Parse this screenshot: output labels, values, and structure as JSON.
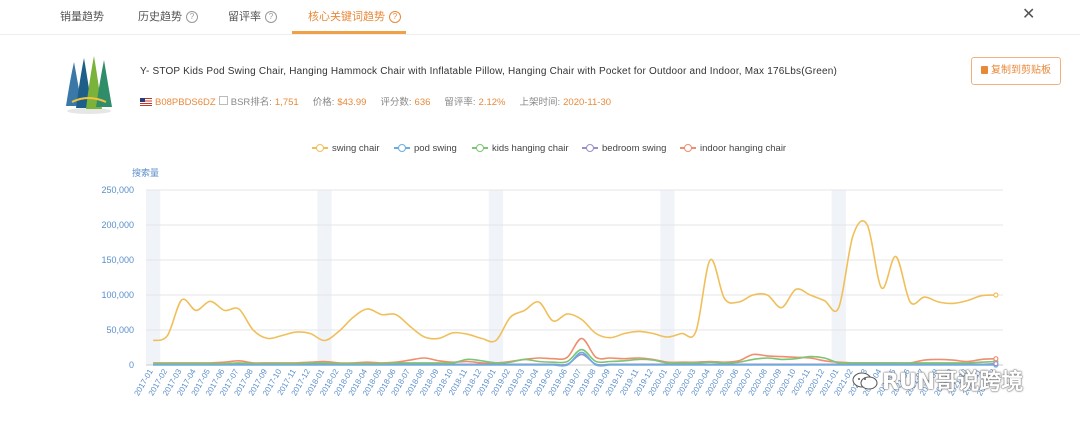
{
  "tabs": [
    {
      "label": "销量趋势",
      "help": false,
      "active": false
    },
    {
      "label": "历史趋势",
      "help": true,
      "active": false
    },
    {
      "label": "留评率",
      "help": true,
      "active": false
    },
    {
      "label": "核心关键词趋势",
      "help": true,
      "active": true
    }
  ],
  "help_glyph": "?",
  "close_glyph": "✕",
  "product": {
    "title": "Y- STOP Kids Pod Swing Chair, Hanging Hammock Chair with Inflatable Pillow, Hanging Chair with Pocket for Outdoor and Indoor, Max 176Lbs(Green)",
    "asin": "B08PBDS6DZ",
    "bsr_label": "BSR排名:",
    "bsr": "1,751",
    "price_label": "价格:",
    "price": "$43.99",
    "reviews_label": "评分数:",
    "reviews": "636",
    "review_rate_label": "留评率:",
    "review_rate": "2.12%",
    "listed_label": "上架时间:",
    "listed": "2020-11-30"
  },
  "copy_button": "复制到剪贴板",
  "watermark": "RUN哥说跨境",
  "colors": {
    "accent": "#e8893a",
    "axis_text": "#5b8ec9"
  },
  "chart_data": {
    "type": "line",
    "ylabel": "搜索量",
    "ylim": [
      0,
      250000
    ],
    "yticks": [
      "0",
      "50,000",
      "100,000",
      "150,000",
      "200,000",
      "250,000"
    ],
    "grid": true,
    "legend_position": "top-center",
    "x": [
      "2017-01",
      "2017-02",
      "2017-03",
      "2017-04",
      "2017-05",
      "2017-06",
      "2017-07",
      "2017-08",
      "2017-09",
      "2017-10",
      "2017-11",
      "2017-12",
      "2018-01",
      "2018-02",
      "2018-03",
      "2018-04",
      "2018-05",
      "2018-06",
      "2018-07",
      "2018-08",
      "2018-09",
      "2018-10",
      "2018-11",
      "2018-12",
      "2019-01",
      "2019-02",
      "2019-03",
      "2019-04",
      "2019-05",
      "2019-06",
      "2019-07",
      "2019-08",
      "2019-09",
      "2019-10",
      "2019-11",
      "2019-12",
      "2020-01",
      "2020-02",
      "2020-03",
      "2020-04",
      "2020-05",
      "2020-06",
      "2020-07",
      "2020-08",
      "2020-09",
      "2020-10",
      "2020-11",
      "2020-12",
      "2021-01",
      "2021-02",
      "2021-03",
      "2021-04",
      "2021-05",
      "2021-06",
      "2021-07",
      "2021-08",
      "2021-09",
      "2021-10",
      "2021-11",
      "2021-12"
    ],
    "series": [
      {
        "name": "swing chair",
        "color": "#f0bf5a",
        "values": [
          35000,
          42000,
          93000,
          78000,
          91000,
          78000,
          80000,
          50000,
          38000,
          42000,
          47000,
          45000,
          35000,
          48000,
          68000,
          80000,
          72000,
          72000,
          55000,
          40000,
          38000,
          46000,
          44000,
          38000,
          35000,
          68000,
          78000,
          90000,
          63000,
          73000,
          65000,
          45000,
          39000,
          45000,
          48000,
          45000,
          40000,
          45000,
          48000,
          150000,
          95000,
          90000,
          100000,
          100000,
          82000,
          108000,
          100000,
          92000,
          82000,
          185000,
          200000,
          110000,
          155000,
          90000,
          97000,
          90000,
          88000,
          92000,
          99000,
          100000
        ]
      },
      {
        "name": "pod swing",
        "color": "#6aaee0",
        "values": [
          0,
          0,
          0,
          0,
          0,
          0,
          0,
          0,
          0,
          0,
          0,
          0,
          0,
          0,
          0,
          0,
          0,
          0,
          0,
          0,
          0,
          0,
          0,
          0,
          0,
          0,
          0,
          0,
          0,
          0,
          18000,
          0,
          0,
          0,
          0,
          0,
          0,
          0,
          0,
          0,
          0,
          0,
          0,
          0,
          0,
          0,
          0,
          0,
          0,
          0,
          0,
          0,
          0,
          0,
          0,
          0,
          0,
          0,
          0,
          0
        ]
      },
      {
        "name": "kids hanging chair",
        "color": "#7cc576",
        "values": [
          2000,
          2000,
          2000,
          2000,
          2000,
          2000,
          3000,
          2000,
          2000,
          2000,
          2000,
          3000,
          3000,
          2000,
          2000,
          2000,
          2000,
          3000,
          3000,
          3000,
          3000,
          3000,
          8000,
          6000,
          3000,
          4000,
          8000,
          5000,
          4000,
          5000,
          22000,
          5000,
          5000,
          6000,
          8000,
          7000,
          3000,
          3000,
          3000,
          4000,
          3000,
          4000,
          8000,
          10000,
          8000,
          9000,
          12000,
          10000,
          3000,
          3000,
          3000,
          3000,
          3000,
          3000,
          3000,
          3000,
          3000,
          3000,
          4000,
          5000
        ]
      },
      {
        "name": "bedroom swing",
        "color": "#9b8fc8",
        "values": [
          1000,
          1000,
          1000,
          1000,
          1000,
          1000,
          1000,
          1000,
          1000,
          1000,
          1000,
          1000,
          1000,
          1000,
          1000,
          1000,
          1000,
          1000,
          1000,
          1000,
          1000,
          1000,
          1000,
          1000,
          1000,
          1000,
          1000,
          1000,
          1000,
          1000,
          15000,
          1000,
          1000,
          1000,
          1000,
          1000,
          1000,
          1000,
          1000,
          1000,
          1000,
          1000,
          1000,
          1000,
          1000,
          1000,
          1000,
          1000,
          1000,
          1000,
          1000,
          1000,
          1000,
          1000,
          1000,
          1000,
          1000,
          1000,
          1000,
          2000
        ]
      },
      {
        "name": "indoor hanging chair",
        "color": "#ef8e6e",
        "values": [
          3000,
          3000,
          3000,
          3000,
          3000,
          4000,
          6000,
          3000,
          3000,
          3000,
          3000,
          4000,
          5000,
          3000,
          3000,
          4000,
          3000,
          4000,
          7000,
          10000,
          6000,
          4000,
          5000,
          3000,
          3000,
          5000,
          8000,
          10000,
          9000,
          11000,
          38000,
          11000,
          10000,
          9000,
          10000,
          8000,
          4000,
          4000,
          4000,
          5000,
          4000,
          6000,
          15000,
          13000,
          12000,
          11000,
          10000,
          6000,
          4000,
          3000,
          3000,
          3000,
          3000,
          3000,
          7000,
          8000,
          7000,
          5000,
          8000,
          9000
        ]
      }
    ]
  }
}
